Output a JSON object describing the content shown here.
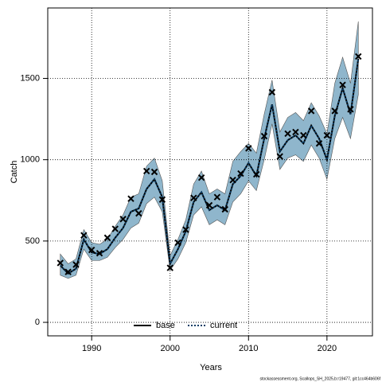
{
  "chart_data": {
    "type": "line",
    "xlabel": "Years",
    "ylabel": "Catch",
    "footer": "stockassessment.org, Scallops_SH_2025,b:r19477, git:1cc464b606f",
    "x": [
      1986,
      1987,
      1988,
      1989,
      1990,
      1991,
      1992,
      1993,
      1994,
      1995,
      1996,
      1997,
      1998,
      1999,
      2000,
      2001,
      2002,
      2003,
      2004,
      2005,
      2006,
      2007,
      2008,
      2009,
      2010,
      2011,
      2012,
      2013,
      2014,
      2015,
      2016,
      2017,
      2018,
      2019,
      2020,
      2021,
      2022,
      2023,
      2024
    ],
    "observed": [
      365,
      310,
      355,
      535,
      445,
      425,
      520,
      575,
      635,
      760,
      670,
      930,
      925,
      755,
      335,
      490,
      570,
      765,
      890,
      720,
      770,
      695,
      875,
      915,
      1070,
      910,
      1145,
      1415,
      1020,
      1160,
      1170,
      1150,
      1300,
      1100,
      1150,
      1300,
      1460,
      1310,
      1635
    ],
    "series": [
      {
        "name": "base",
        "color": "#000000",
        "style": "solid",
        "values": [
          350,
          300,
          330,
          510,
          430,
          420,
          450,
          520,
          580,
          680,
          700,
          820,
          880,
          770,
          360,
          450,
          560,
          740,
          800,
          690,
          720,
          690,
          850,
          900,
          980,
          900,
          1130,
          1340,
          1050,
          1120,
          1150,
          1100,
          1210,
          1130,
          1000,
          1270,
          1440,
          1280,
          1620
        ]
      },
      {
        "name": "current",
        "color": "#0b3d66",
        "style": "dotted",
        "band_color": "#8fb6cc",
        "values": [
          350,
          300,
          330,
          510,
          430,
          420,
          450,
          520,
          580,
          680,
          700,
          820,
          880,
          770,
          360,
          450,
          560,
          740,
          800,
          690,
          720,
          690,
          850,
          900,
          980,
          900,
          1130,
          1340,
          1050,
          1120,
          1150,
          1100,
          1210,
          1130,
          1000,
          1270,
          1440,
          1280,
          1620
        ],
        "upper": [
          420,
          360,
          390,
          570,
          490,
          480,
          510,
          590,
          660,
          770,
          790,
          960,
          1010,
          870,
          410,
          510,
          630,
          850,
          930,
          790,
          820,
          790,
          990,
          1050,
          1100,
          1040,
          1280,
          1490,
          1170,
          1260,
          1290,
          1240,
          1350,
          1270,
          1160,
          1470,
          1630,
          1470,
          1850
        ],
        "lower": [
          290,
          270,
          290,
          450,
          380,
          380,
          400,
          460,
          510,
          580,
          610,
          730,
          770,
          680,
          320,
          390,
          490,
          660,
          710,
          600,
          630,
          600,
          740,
          790,
          870,
          810,
          1000,
          1220,
          940,
          1010,
          1030,
          990,
          1090,
          1010,
          880,
          1130,
          1260,
          1130,
          1400
        ]
      }
    ],
    "xlim": [
      1984.4,
      2025.8
    ],
    "ylim": [
      -83,
      1933
    ],
    "xticks": [
      1990,
      2000,
      2010,
      2020
    ],
    "yticks": [
      0,
      500,
      1000,
      1500
    ],
    "grid": true,
    "legend": "bottom"
  }
}
